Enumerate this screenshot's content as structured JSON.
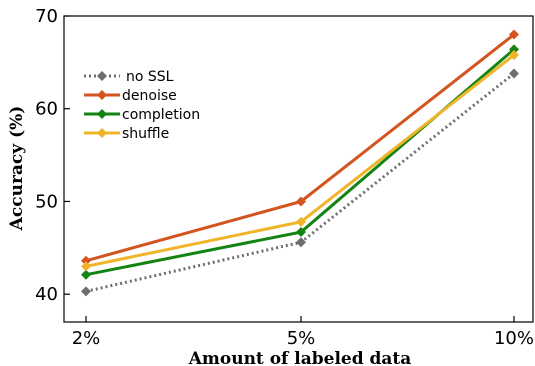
{
  "chart_data": {
    "type": "line",
    "categories": [
      "2%",
      "5%",
      "10%"
    ],
    "xlabel": "Amount of labeled data",
    "ylabel": "Accuracy (%)",
    "ylim": [
      37,
      70
    ],
    "yticks": [
      40,
      50,
      60,
      70
    ],
    "grid": false,
    "legend_position": "upper-left",
    "series": [
      {
        "name": "no SSL",
        "color": "#6e6e6e",
        "dash": "dotted",
        "marker": "diamond",
        "values": [
          40.3,
          45.6,
          63.8
        ]
      },
      {
        "name": "denoise",
        "color": "#d4541f",
        "dash": "solid",
        "marker": "diamond",
        "values": [
          43.6,
          50.0,
          68.0
        ]
      },
      {
        "name": "completion",
        "color": "#138413",
        "dash": "solid",
        "marker": "diamond",
        "values": [
          42.1,
          46.7,
          66.4
        ]
      },
      {
        "name": "shuffle",
        "color": "#f0b429",
        "dash": "solid",
        "marker": "diamond",
        "values": [
          43.0,
          47.8,
          65.8
        ]
      }
    ]
  }
}
